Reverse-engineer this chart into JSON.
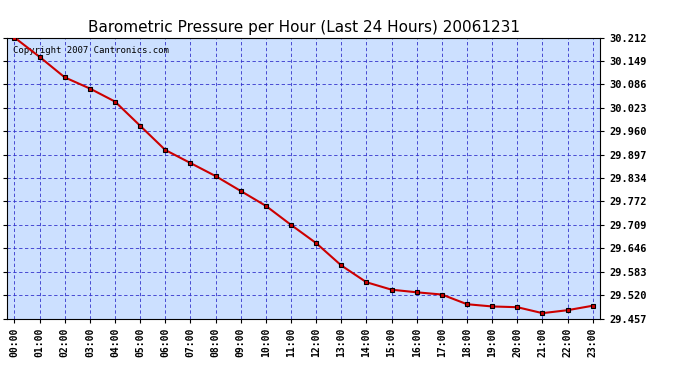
{
  "title": "Barometric Pressure per Hour (Last 24 Hours) 20061231",
  "x_labels": [
    "00:00",
    "01:00",
    "02:00",
    "03:00",
    "04:00",
    "05:00",
    "06:00",
    "07:00",
    "08:00",
    "09:00",
    "10:00",
    "11:00",
    "12:00",
    "13:00",
    "14:00",
    "15:00",
    "16:00",
    "17:00",
    "18:00",
    "19:00",
    "20:00",
    "21:00",
    "22:00",
    "23:00"
  ],
  "y_values": [
    30.212,
    30.16,
    30.105,
    30.075,
    30.04,
    29.975,
    29.91,
    29.875,
    29.84,
    29.8,
    29.76,
    29.709,
    29.66,
    29.6,
    29.555,
    29.535,
    29.528,
    29.522,
    29.496,
    29.49,
    29.488,
    29.472,
    29.48,
    29.492
  ],
  "y_min": 29.457,
  "y_max": 30.212,
  "y_ticks": [
    29.457,
    29.52,
    29.583,
    29.646,
    29.709,
    29.772,
    29.834,
    29.897,
    29.96,
    30.023,
    30.086,
    30.149,
    30.212
  ],
  "line_color": "#cc0000",
  "marker_color": "#000000",
  "marker_face": "#cc0000",
  "grid_color": "#3333cc",
  "bg_color": "#ffffff",
  "plot_bg_color": "#cce0ff",
  "title_fontsize": 11,
  "copyright_text": "Copyright 2007 Cantronics.com",
  "copyright_fontsize": 6.5
}
